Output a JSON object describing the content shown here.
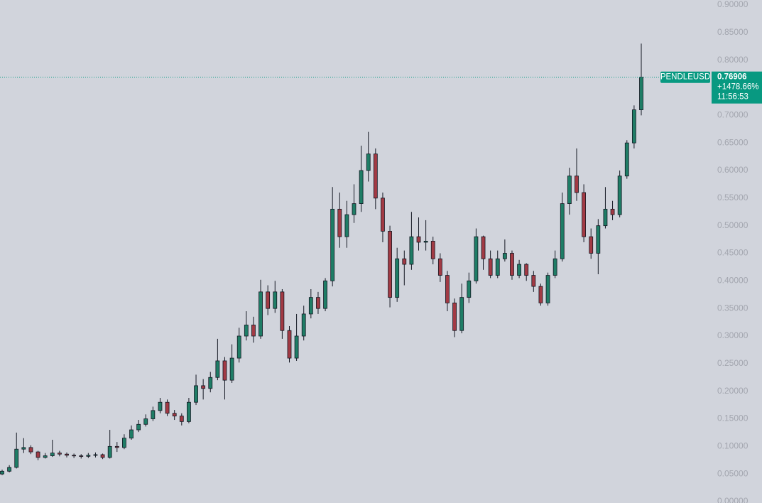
{
  "chart_data": {
    "type": "candlestick",
    "symbol": "PENDLEUSD",
    "last_price": {
      "value": 0.76906,
      "label": "0.76906"
    },
    "change": "+1478.66%",
    "countdown": "11:56:53",
    "up_color": "#1f7d66",
    "down_color": "#a23a44",
    "wick_color": "#131722",
    "price_line_color": "#089981",
    "ylim": [
      0,
      0.9
    ],
    "yticks": [
      {
        "value": 0,
        "label": "0.00000"
      },
      {
        "value": 0.05,
        "label": "0.05000"
      },
      {
        "value": 0.1,
        "label": "0.10000"
      },
      {
        "value": 0.15,
        "label": "0.15000"
      },
      {
        "value": 0.2,
        "label": "0.20000"
      },
      {
        "value": 0.25,
        "label": "0.25000"
      },
      {
        "value": 0.3,
        "label": "0.30000"
      },
      {
        "value": 0.35,
        "label": "0.35000"
      },
      {
        "value": 0.4,
        "label": "0.40000"
      },
      {
        "value": 0.45,
        "label": "0.45000"
      },
      {
        "value": 0.5,
        "label": "0.50000"
      },
      {
        "value": 0.55,
        "label": "0.55000"
      },
      {
        "value": 0.6,
        "label": "0.60000"
      },
      {
        "value": 0.65,
        "label": "0.65000"
      },
      {
        "value": 0.7,
        "label": "0.70000"
      },
      {
        "value": 0.75,
        "label": "0.75000"
      },
      {
        "value": 0.8,
        "label": "0.80000"
      },
      {
        "value": 0.85,
        "label": "0.85000"
      },
      {
        "value": 0.9,
        "label": "0.90000"
      }
    ],
    "open": [
      0.05,
      0.055,
      0.062,
      0.095,
      0.098,
      0.09,
      0.08,
      0.083,
      0.088,
      0.086,
      0.084,
      0.083,
      0.082,
      0.084,
      0.085,
      0.08,
      0.1,
      0.098,
      0.115,
      0.13,
      0.14,
      0.15,
      0.165,
      0.18,
      0.16,
      0.155,
      0.145,
      0.18,
      0.21,
      0.205,
      0.225,
      0.255,
      0.22,
      0.26,
      0.3,
      0.32,
      0.3,
      0.38,
      0.35,
      0.38,
      0.31,
      0.26,
      0.3,
      0.34,
      0.37,
      0.35,
      0.4,
      0.53,
      0.48,
      0.52,
      0.54,
      0.6,
      0.63,
      0.55,
      0.49,
      0.37,
      0.44,
      0.43,
      0.48,
      0.47,
      0.472,
      0.44,
      0.41,
      0.36,
      0.31,
      0.37,
      0.4,
      0.48,
      0.44,
      0.41,
      0.44,
      0.45,
      0.41,
      0.43,
      0.41,
      0.39,
      0.36,
      0.41,
      0.44,
      0.54,
      0.59,
      0.56,
      0.48,
      0.45,
      0.5,
      0.53,
      0.52,
      0.59,
      0.65,
      0.71
    ],
    "high": [
      0.058,
      0.066,
      0.125,
      0.115,
      0.102,
      0.092,
      0.088,
      0.112,
      0.092,
      0.089,
      0.087,
      0.086,
      0.088,
      0.089,
      0.087,
      0.13,
      0.108,
      0.122,
      0.138,
      0.148,
      0.158,
      0.172,
      0.188,
      0.185,
      0.166,
      0.16,
      0.188,
      0.23,
      0.222,
      0.235,
      0.295,
      0.262,
      0.285,
      0.315,
      0.345,
      0.335,
      0.402,
      0.392,
      0.4,
      0.385,
      0.318,
      0.34,
      0.355,
      0.385,
      0.38,
      0.405,
      0.57,
      0.56,
      0.545,
      0.575,
      0.645,
      0.67,
      0.64,
      0.56,
      0.5,
      0.46,
      0.455,
      0.525,
      0.515,
      0.51,
      0.48,
      0.45,
      0.418,
      0.368,
      0.395,
      0.415,
      0.495,
      0.482,
      0.455,
      0.455,
      0.475,
      0.455,
      0.438,
      0.432,
      0.418,
      0.395,
      0.415,
      0.455,
      0.56,
      0.605,
      0.64,
      0.575,
      0.495,
      0.512,
      0.57,
      0.545,
      0.6,
      0.655,
      0.718,
      0.83
    ],
    "low": [
      0.048,
      0.053,
      0.06,
      0.088,
      0.086,
      0.075,
      0.078,
      0.081,
      0.082,
      0.08,
      0.079,
      0.078,
      0.079,
      0.08,
      0.077,
      0.078,
      0.09,
      0.095,
      0.112,
      0.126,
      0.136,
      0.146,
      0.16,
      0.155,
      0.148,
      0.138,
      0.142,
      0.175,
      0.185,
      0.198,
      0.22,
      0.185,
      0.215,
      0.252,
      0.292,
      0.288,
      0.295,
      0.338,
      0.342,
      0.295,
      0.252,
      0.255,
      0.292,
      0.332,
      0.34,
      0.345,
      0.39,
      0.46,
      0.46,
      0.505,
      0.525,
      0.58,
      0.53,
      0.47,
      0.352,
      0.362,
      0.392,
      0.42,
      0.455,
      0.455,
      0.43,
      0.398,
      0.345,
      0.298,
      0.305,
      0.36,
      0.395,
      0.42,
      0.405,
      0.405,
      0.435,
      0.402,
      0.405,
      0.4,
      0.38,
      0.355,
      0.355,
      0.405,
      0.435,
      0.52,
      0.545,
      0.47,
      0.44,
      0.412,
      0.495,
      0.51,
      0.515,
      0.585,
      0.64,
      0.7
    ],
    "close": [
      0.055,
      0.062,
      0.095,
      0.098,
      0.09,
      0.08,
      0.083,
      0.088,
      0.086,
      0.084,
      0.083,
      0.082,
      0.084,
      0.085,
      0.08,
      0.1,
      0.098,
      0.115,
      0.13,
      0.14,
      0.15,
      0.165,
      0.18,
      0.16,
      0.155,
      0.145,
      0.18,
      0.21,
      0.205,
      0.225,
      0.255,
      0.22,
      0.26,
      0.3,
      0.32,
      0.3,
      0.38,
      0.35,
      0.38,
      0.31,
      0.26,
      0.3,
      0.34,
      0.37,
      0.35,
      0.4,
      0.53,
      0.48,
      0.52,
      0.54,
      0.6,
      0.63,
      0.55,
      0.49,
      0.37,
      0.44,
      0.43,
      0.48,
      0.47,
      0.472,
      0.44,
      0.41,
      0.36,
      0.31,
      0.37,
      0.4,
      0.48,
      0.44,
      0.41,
      0.44,
      0.45,
      0.41,
      0.43,
      0.41,
      0.39,
      0.36,
      0.41,
      0.44,
      0.54,
      0.59,
      0.56,
      0.48,
      0.45,
      0.5,
      0.53,
      0.52,
      0.59,
      0.65,
      0.71,
      0.76906
    ]
  }
}
